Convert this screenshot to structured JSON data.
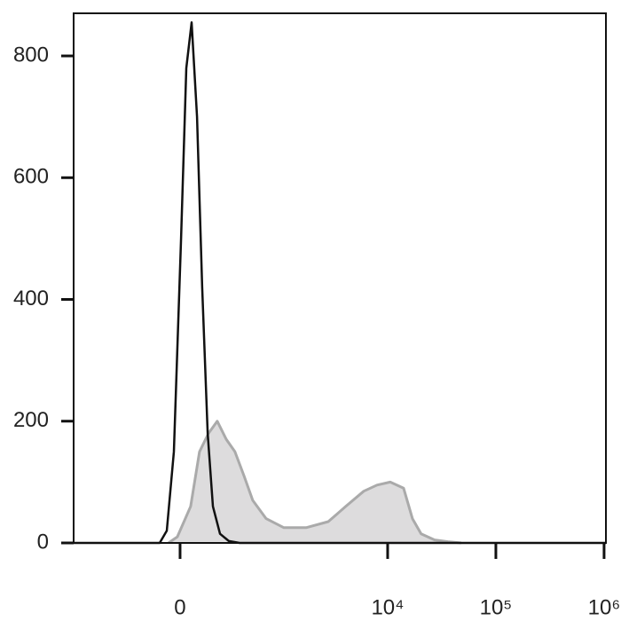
{
  "chart_data": {
    "type": "line",
    "xscale": "biexponential",
    "xlim": [
      -1150,
      1040000
    ],
    "ylim": [
      0,
      870
    ],
    "xticks": [
      0,
      {
        "value": 10000,
        "label": "10⁴"
      },
      {
        "value": 100000,
        "label": "10⁵"
      },
      {
        "value": 1000000,
        "label": "10⁶"
      }
    ],
    "yticks": [
      0,
      200,
      400,
      600,
      800
    ],
    "series": [
      {
        "color": "#aaaaaa",
        "fill": "#dddcdd",
        "x": [
          -60,
          -14,
          55,
          103,
          155,
          212,
          278,
          350,
          440,
          541,
          734,
          1087,
          1753,
          2821,
          4105,
          6013,
          7970,
          10580,
          14030,
          16950,
          20400,
          27190,
          36080,
          47820
        ],
        "values": [
          0,
          10,
          60,
          150,
          180,
          200,
          170,
          150,
          110,
          70,
          40,
          25,
          25,
          35,
          60,
          85,
          95,
          100,
          90,
          40,
          15,
          5,
          2,
          0
        ]
      },
      {
        "color": "#111111",
        "x": [
          -1150,
          -108,
          -69,
          -32,
          5,
          32,
          60,
          89,
          118,
          150,
          183,
          231,
          298,
          394,
          1040000
        ],
        "values": [
          0,
          0,
          20,
          150,
          500,
          780,
          855,
          700,
          420,
          180,
          60,
          15,
          3,
          0,
          0
        ]
      }
    ]
  }
}
